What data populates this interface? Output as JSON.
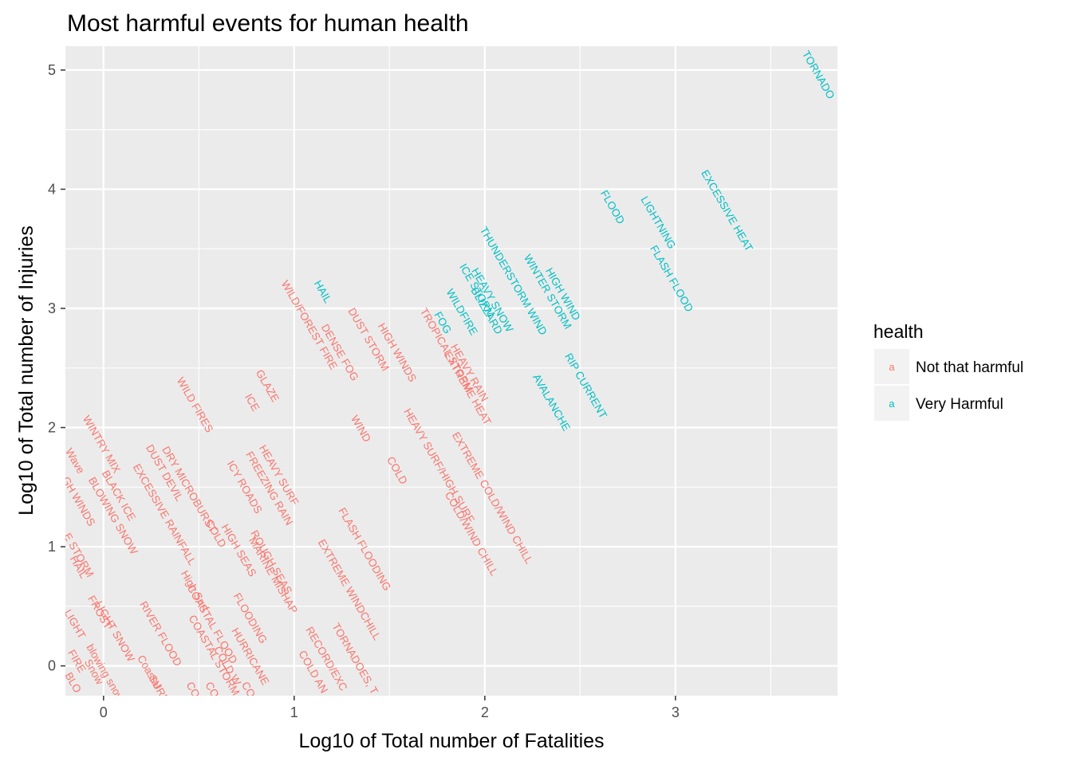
{
  "chart_data": {
    "type": "scatter",
    "title": "Most harmful events for human health",
    "xlabel": "Log10 of Total number of Fatalities",
    "ylabel": "Log10 of Total number of Injuries",
    "xlim": [
      -0.2,
      3.85
    ],
    "ylim": [
      -0.25,
      5.2
    ],
    "x_ticks": [
      0,
      1,
      2,
      3
    ],
    "y_ticks": [
      0,
      1,
      2,
      3,
      4,
      5
    ],
    "grid": true,
    "legend": {
      "title": "health",
      "position": "right",
      "glyph": "a",
      "entries": [
        {
          "label": "Not that harmful",
          "color": "#F8766D"
        },
        {
          "label": "Very Harmful",
          "color": "#00BFC4"
        }
      ]
    },
    "series": [
      {
        "name": "Very Harmful",
        "color": "#00BFC4",
        "points": [
          {
            "label": "TORNADO",
            "x": 3.75,
            "y": 4.96
          },
          {
            "label": "EXCESSIVE HEAT",
            "x": 3.27,
            "y": 3.82
          },
          {
            "label": "FLOOD",
            "x": 2.67,
            "y": 3.85
          },
          {
            "label": "LIGHTNING",
            "x": 2.91,
            "y": 3.72
          },
          {
            "label": "FLASH FLOOD",
            "x": 2.98,
            "y": 3.25
          },
          {
            "label": "THUNDERSTORM WIND",
            "x": 2.15,
            "y": 3.23
          },
          {
            "label": "ICE STORM",
            "x": 1.96,
            "y": 3.15
          },
          {
            "label": "HEAVY SNOW",
            "x": 2.04,
            "y": 3.07
          },
          {
            "label": "BLIZZARD",
            "x": 2.01,
            "y": 2.98
          },
          {
            "label": "WINTER STORM",
            "x": 2.33,
            "y": 3.14
          },
          {
            "label": "HIGH WIND",
            "x": 2.41,
            "y": 3.12
          },
          {
            "label": "WILDFIRE",
            "x": 1.88,
            "y": 2.97
          },
          {
            "label": "FOG",
            "x": 1.78,
            "y": 2.88
          },
          {
            "label": "HAIL",
            "x": 1.15,
            "y": 3.14
          },
          {
            "label": "RIP CURRENT",
            "x": 2.53,
            "y": 2.35
          },
          {
            "label": "AVALANCHE",
            "x": 2.35,
            "y": 2.21
          }
        ]
      },
      {
        "name": "Not that harmful",
        "color": "#F8766D",
        "points": [
          {
            "label": "WILD/FOREST FIRE",
            "x": 1.08,
            "y": 2.86
          },
          {
            "label": "DUST STORM",
            "x": 1.39,
            "y": 2.74
          },
          {
            "label": "DENSE FOG",
            "x": 1.24,
            "y": 2.63
          },
          {
            "label": "HIGH WINDS",
            "x": 1.54,
            "y": 2.63
          },
          {
            "label": "TROPICAL STORM",
            "x": 1.8,
            "y": 2.65
          },
          {
            "label": "HEAVY RAIN",
            "x": 1.92,
            "y": 2.46
          },
          {
            "label": "EXTREME HEAT",
            "x": 1.91,
            "y": 2.33
          },
          {
            "label": "GLAZE",
            "x": 0.86,
            "y": 2.35
          },
          {
            "label": "ICE",
            "x": 0.78,
            "y": 2.21
          },
          {
            "label": "WILD FIRES",
            "x": 0.48,
            "y": 2.19
          },
          {
            "label": "WIND",
            "x": 1.35,
            "y": 1.99
          },
          {
            "label": "HEAVY SURF/HIGH SURF",
            "x": 1.76,
            "y": 1.68
          },
          {
            "label": "COLD",
            "x": 1.54,
            "y": 1.64
          },
          {
            "label": "EXTREME COLD/WIND CHILL",
            "x": 2.04,
            "y": 1.41
          },
          {
            "label": "COLD/WIND CHILL",
            "x": 1.93,
            "y": 1.11
          },
          {
            "label": "WINTRY MIX",
            "x": -0.01,
            "y": 1.86
          },
          {
            "label": "DUST DEVIL",
            "x": 0.32,
            "y": 1.62
          },
          {
            "label": "DRY MICROBURST",
            "x": 0.45,
            "y": 1.48
          },
          {
            "label": "EXCESSIVE RAINFALL",
            "x": 0.32,
            "y": 1.27
          },
          {
            "label": "HEAVY SURF",
            "x": 0.92,
            "y": 1.6
          },
          {
            "label": "FREEZING RAIN",
            "x": 0.87,
            "y": 1.49
          },
          {
            "label": "ICY ROADS",
            "x": 0.74,
            "y": 1.5
          },
          {
            "label": "BLACK ICE",
            "x": 0.08,
            "y": 1.43
          },
          {
            "label": "BLOWING SNOW",
            "x": 0.05,
            "y": 1.26
          },
          {
            "label": "FLASH FLOODING",
            "x": 1.37,
            "y": 0.98
          },
          {
            "label": "EXTREME WINDCHILL",
            "x": 1.29,
            "y": 0.64
          },
          {
            "label": "COLD",
            "x": 0.59,
            "y": 1.11
          },
          {
            "label": "HIGH SEAS",
            "x": 0.71,
            "y": 0.97
          },
          {
            "label": "MARINE MISHAP",
            "x": 0.89,
            "y": 0.76
          },
          {
            "label": "ROUGH SEAS",
            "x": 0.88,
            "y": 0.87
          },
          {
            "label": "High Surf",
            "x": 0.48,
            "y": 0.63
          },
          {
            "label": "COASTAL FLOOD",
            "x": 0.57,
            "y": 0.35
          },
          {
            "label": "COASTAL STORM",
            "x": 0.58,
            "y": 0.09
          },
          {
            "label": "RIVER FLOOD",
            "x": 0.3,
            "y": 0.27
          },
          {
            "label": "FLOODING",
            "x": 0.77,
            "y": 0.4
          },
          {
            "label": "HURRICANE",
            "x": 0.77,
            "y": 0.08
          },
          {
            "label": "COLD W",
            "x": 0.65,
            "y": 0.0
          },
          {
            "label": "RECORD/EXC",
            "x": 1.17,
            "y": 0.06
          },
          {
            "label": "COLD AN",
            "x": 1.1,
            "y": -0.05
          },
          {
            "label": "TORNADOES, T",
            "x": 1.32,
            "y": 0.06
          },
          {
            "label": "FROST",
            "x": -0.02,
            "y": 0.45
          },
          {
            "label": "LIGHT SNOW",
            "x": 0.06,
            "y": 0.29
          },
          {
            "label": "blowing snow",
            "x": 0.01,
            "y": -0.06
          },
          {
            "label": "HAIL",
            "x": -0.13,
            "y": 0.83
          },
          {
            "label": "E STORM",
            "x": -0.13,
            "y": 0.93
          },
          {
            "label": "GH WINDS",
            "x": -0.13,
            "y": 1.38
          },
          {
            "label": "Wave",
            "x": -0.15,
            "y": 1.72
          },
          {
            "label": "LIGHT",
            "x": -0.15,
            "y": 0.35
          },
          {
            "label": "FIRE",
            "x": -0.14,
            "y": 0.04
          },
          {
            "label": "Snow",
            "x": -0.05,
            "y": -0.05
          },
          {
            "label": "Coastal",
            "x": 0.24,
            "y": -0.05
          },
          {
            "label": "SURF",
            "x": 0.29,
            "y": -0.19
          },
          {
            "label": "CO",
            "x": 0.47,
            "y": -0.2
          },
          {
            "label": "CO",
            "x": 0.57,
            "y": -0.2
          },
          {
            "label": "CO",
            "x": 0.76,
            "y": -0.2
          },
          {
            "label": "BLO",
            "x": -0.16,
            "y": -0.14
          }
        ]
      }
    ]
  }
}
